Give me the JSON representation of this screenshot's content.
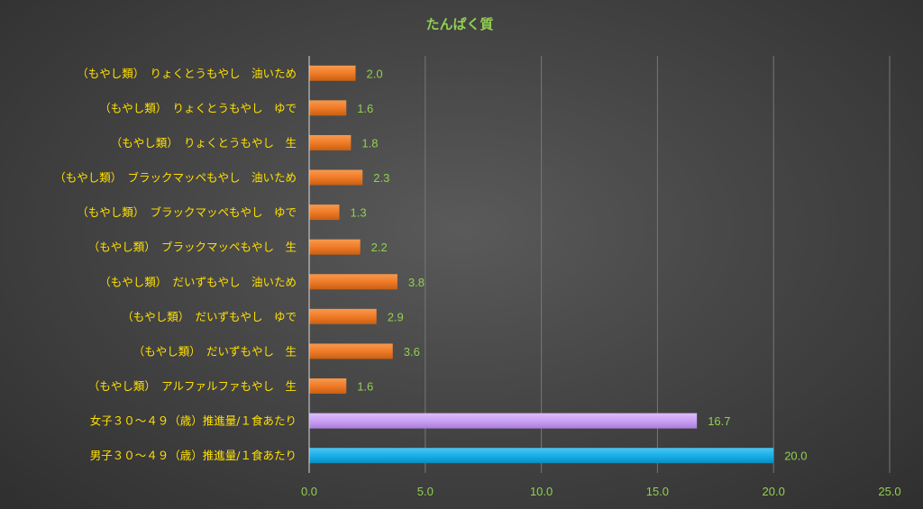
{
  "chart_data": {
    "type": "bar",
    "orientation": "horizontal",
    "title": "たんぱく質",
    "categories": [
      "（もやし類）　りょくとうもやし　油いため",
      "（もやし類）　りょくとうもやし　ゆで",
      "（もやし類）　りょくとうもやし　生",
      "（もやし類）　ブラックマッペもやし　油いため",
      "（もやし類）　ブラックマッペもやし　ゆで",
      "（もやし類）　ブラックマッペもやし　生",
      "（もやし類）　だいずもやし　油いため",
      "（もやし類）　だいずもやし　ゆで",
      "（もやし類）　だいずもやし　生",
      "（もやし類）　アルファルファもやし　生",
      "女子３０～４９（歳）推進量/１食あたり",
      "男子３０～４９（歳）推進量/１食あたり"
    ],
    "values": [
      2.0,
      1.6,
      1.8,
      2.3,
      1.3,
      2.2,
      3.8,
      2.9,
      3.6,
      1.6,
      16.7,
      20.0
    ],
    "data_labels": [
      "2.0",
      "1.6",
      "1.8",
      "2.3",
      "1.3",
      "2.2",
      "3.8",
      "2.9",
      "3.6",
      "1.6",
      "16.7",
      "20.0"
    ],
    "bar_colors": [
      "#f07b28",
      "#f07b28",
      "#f07b28",
      "#f07b28",
      "#f07b28",
      "#f07b28",
      "#f07b28",
      "#f07b28",
      "#f07b28",
      "#f07b28",
      "#c9a0f5",
      "#19b0ea"
    ],
    "xlim": [
      0,
      25
    ],
    "xticks": [
      0,
      5,
      10,
      15,
      20,
      25
    ],
    "xtick_labels": [
      "0.0",
      "5.0",
      "10.0",
      "15.0",
      "20.0",
      "25.0"
    ],
    "xlabel": "",
    "ylabel": "",
    "grid": true,
    "legend": "none",
    "colors": {
      "title": "#92d050",
      "category_label": "#ffe000",
      "tick_label": "#92d050",
      "data_label": "#92d050",
      "grid": "#777777",
      "axis": "#d8d8d8"
    }
  }
}
